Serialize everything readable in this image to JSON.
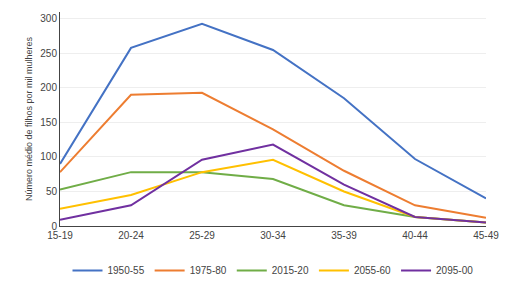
{
  "chart_data": {
    "type": "line",
    "categories": [
      "15-19",
      "20-24",
      "25-29",
      "30-34",
      "35-39",
      "40-44",
      "45-49"
    ],
    "series": [
      {
        "name": "1950-55",
        "color": "#4472C4",
        "values": [
          90,
          258,
          293,
          255,
          185,
          97,
          40
        ]
      },
      {
        "name": "1975-80",
        "color": "#ED7D31",
        "values": [
          78,
          190,
          193,
          140,
          80,
          30,
          12
        ]
      },
      {
        "name": "2015-20",
        "color": "#70AD47",
        "values": [
          53,
          78,
          78,
          68,
          30,
          13,
          5
        ]
      },
      {
        "name": "2055-60",
        "color": "#FFC000",
        "values": [
          25,
          45,
          78,
          96,
          50,
          13,
          5
        ]
      },
      {
        "name": "2095-00",
        "color": "#7030A0",
        "values": [
          9,
          30,
          96,
          118,
          60,
          13,
          5
        ]
      }
    ],
    "ylabel": "Número médio de filhos por mil mulheres",
    "ylim": [
      0,
      310
    ],
    "yticks": [
      0,
      50,
      100,
      150,
      200,
      250,
      300
    ],
    "grid": true,
    "legend": "bottom"
  }
}
